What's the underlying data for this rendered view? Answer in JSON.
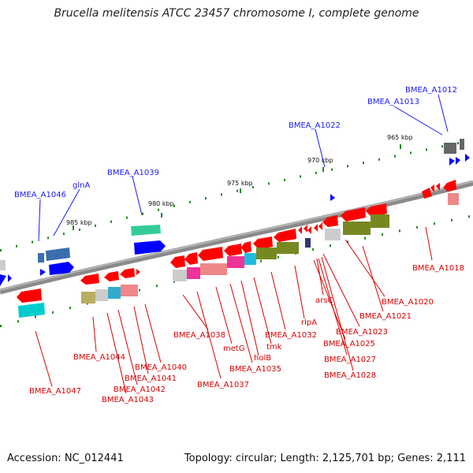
{
  "title": "Brucella melitensis ATCC 23457 chromosome I, complete genome",
  "footer": {
    "accession": "Accession: NC_012441",
    "summary": "Topology: circular; Length: 2,125,701 bp; Genes: 2,111"
  },
  "colors": {
    "forward_label": "#1a1aff",
    "reverse_label": "#dd0000",
    "backbone": "#8a8a8a",
    "cds": "#ff0000",
    "cds_forward": "#0000ff"
  },
  "ticks": [
    "985 kbp",
    "980 kbp",
    "975 kbp",
    "970 kbp",
    "965 kbp"
  ],
  "labels_forward": [
    "BMEA_A1012",
    "BMEA_A1013",
    "BMEA_A1022",
    "BMEA_A1039",
    "glnA",
    "BMEA_A1046"
  ],
  "labels_reverse": [
    "BMEA_A1018",
    "arsC",
    "BMEA_A1020",
    "BMEA_A1021",
    "rlpA",
    "BMEA_A1023",
    "BMEA_A1025",
    "BMEA_A1027",
    "BMEA_A1028",
    "BMEA_A1032",
    "tmk",
    "holB",
    "BMEA_A1035",
    "metG",
    "BMEA_A1037",
    "BMEA_A1038",
    "BMEA_A1040",
    "BMEA_A1041",
    "BMEA_A1042",
    "BMEA_A1043",
    "BMEA_A1044",
    "BMEA_A1047"
  ]
}
